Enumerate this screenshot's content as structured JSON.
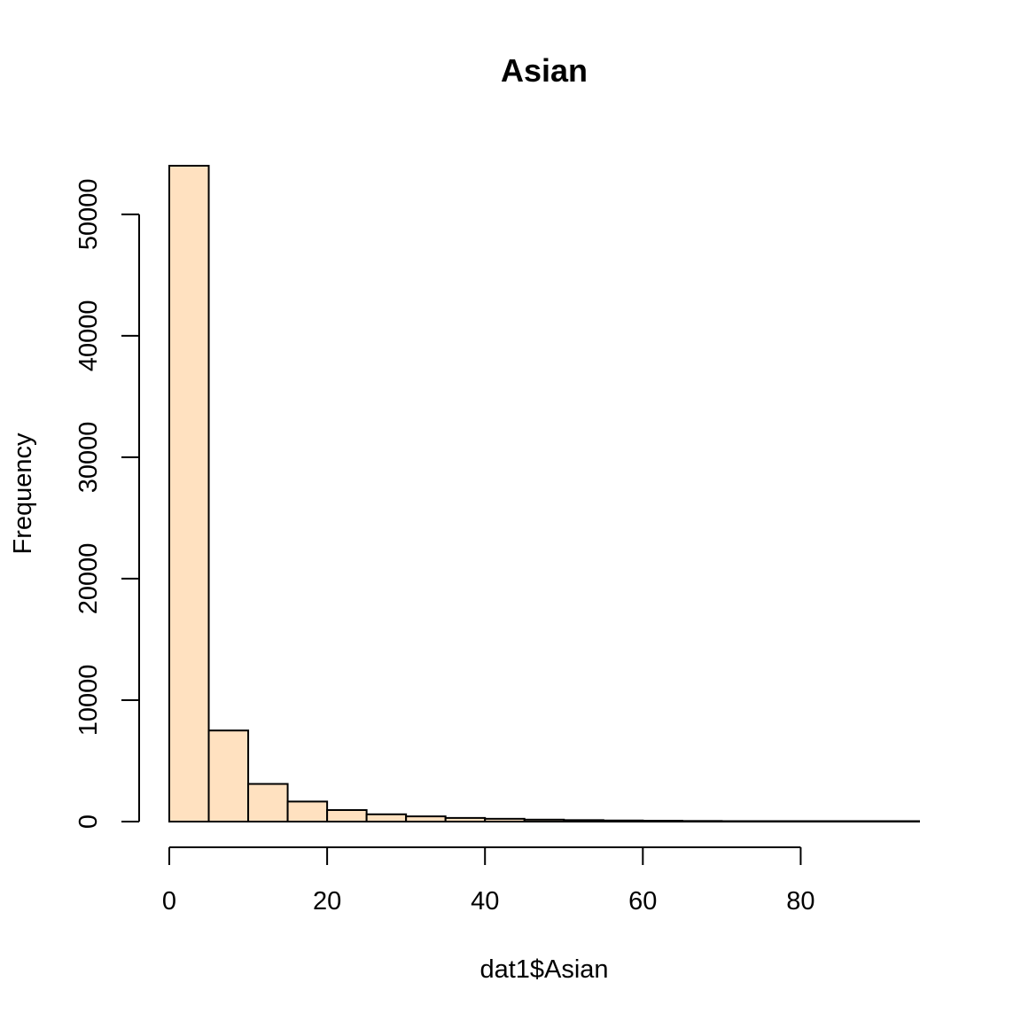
{
  "chart_data": {
    "type": "bar",
    "title": "Asian",
    "xlabel": "dat1$Asian",
    "ylabel": "Frequency",
    "bar_color": "#FFE1C0",
    "bin_width": 5,
    "x_range": [
      0,
      95
    ],
    "xlim": [
      0,
      95
    ],
    "ylim": [
      0,
      54000
    ],
    "x_ticks": [
      0,
      20,
      40,
      60,
      80
    ],
    "y_ticks": [
      0,
      10000,
      20000,
      30000,
      40000,
      50000
    ],
    "bins": [
      {
        "x0": 0,
        "x1": 5,
        "count": 54000
      },
      {
        "x0": 5,
        "x1": 10,
        "count": 7500
      },
      {
        "x0": 10,
        "x1": 15,
        "count": 3100
      },
      {
        "x0": 15,
        "x1": 20,
        "count": 1650
      },
      {
        "x0": 20,
        "x1": 25,
        "count": 950
      },
      {
        "x0": 25,
        "x1": 30,
        "count": 600
      },
      {
        "x0": 30,
        "x1": 35,
        "count": 430
      },
      {
        "x0": 35,
        "x1": 40,
        "count": 300
      },
      {
        "x0": 40,
        "x1": 45,
        "count": 230
      },
      {
        "x0": 45,
        "x1": 50,
        "count": 160
      },
      {
        "x0": 50,
        "x1": 55,
        "count": 120
      },
      {
        "x0": 55,
        "x1": 60,
        "count": 90
      },
      {
        "x0": 60,
        "x1": 65,
        "count": 70
      },
      {
        "x0": 65,
        "x1": 70,
        "count": 50
      },
      {
        "x0": 70,
        "x1": 75,
        "count": 35
      },
      {
        "x0": 75,
        "x1": 80,
        "count": 25
      },
      {
        "x0": 80,
        "x1": 85,
        "count": 15
      },
      {
        "x0": 85,
        "x1": 90,
        "count": 10
      },
      {
        "x0": 90,
        "x1": 95,
        "count": 5
      }
    ]
  }
}
